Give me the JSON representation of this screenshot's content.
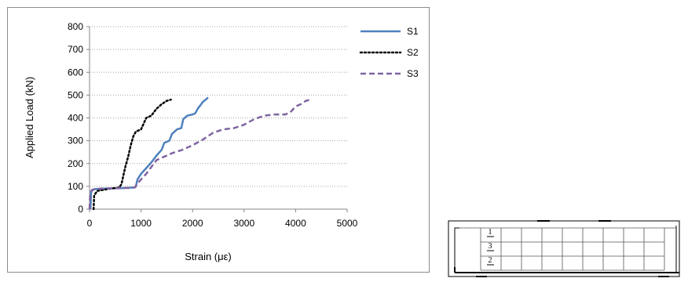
{
  "chart_data": {
    "type": "line",
    "title": "",
    "xlabel": "Strain (με)",
    "ylabel": "Applied Load (kN)",
    "xlim": [
      0,
      5000
    ],
    "ylim": [
      0,
      800
    ],
    "xticks": [
      0,
      1000,
      2000,
      3000,
      4000,
      5000
    ],
    "yticks": [
      0,
      100,
      200,
      300,
      400,
      500,
      600,
      700,
      800
    ],
    "grid": "horizontal dotted",
    "legend": "top-right",
    "series": [
      {
        "name": "S1",
        "color": "#4F81BD",
        "style": "solid",
        "points": [
          [
            0,
            0
          ],
          [
            20,
            5
          ],
          [
            30,
            80
          ],
          [
            100,
            88
          ],
          [
            300,
            90
          ],
          [
            600,
            92
          ],
          [
            880,
            95
          ],
          [
            900,
            100
          ],
          [
            930,
            130
          ],
          [
            1000,
            155
          ],
          [
            1100,
            180
          ],
          [
            1200,
            205
          ],
          [
            1300,
            235
          ],
          [
            1400,
            260
          ],
          [
            1450,
            290
          ],
          [
            1550,
            300
          ],
          [
            1600,
            330
          ],
          [
            1700,
            350
          ],
          [
            1780,
            355
          ],
          [
            1820,
            395
          ],
          [
            1900,
            410
          ],
          [
            2000,
            415
          ],
          [
            2050,
            420
          ],
          [
            2100,
            440
          ],
          [
            2200,
            470
          ],
          [
            2280,
            485
          ],
          [
            2300,
            490
          ]
        ]
      },
      {
        "name": "S2",
        "color": "#000000",
        "style": "dotted",
        "points": [
          [
            80,
            0
          ],
          [
            90,
            60
          ],
          [
            150,
            80
          ],
          [
            400,
            90
          ],
          [
            580,
            95
          ],
          [
            620,
            110
          ],
          [
            650,
            140
          ],
          [
            700,
            190
          ],
          [
            750,
            230
          ],
          [
            800,
            280
          ],
          [
            850,
            320
          ],
          [
            900,
            340
          ],
          [
            1000,
            350
          ],
          [
            1050,
            375
          ],
          [
            1100,
            400
          ],
          [
            1200,
            410
          ],
          [
            1300,
            440
          ],
          [
            1400,
            460
          ],
          [
            1500,
            475
          ],
          [
            1580,
            480
          ]
        ]
      },
      {
        "name": "S3",
        "color": "#8064A2",
        "style": "dashed",
        "points": [
          [
            0,
            0
          ],
          [
            10,
            60
          ],
          [
            50,
            85
          ],
          [
            200,
            90
          ],
          [
            500,
            92
          ],
          [
            800,
            93
          ],
          [
            880,
            95
          ],
          [
            920,
            110
          ],
          [
            1000,
            130
          ],
          [
            1100,
            155
          ],
          [
            1200,
            185
          ],
          [
            1300,
            215
          ],
          [
            1400,
            225
          ],
          [
            1600,
            245
          ],
          [
            1800,
            260
          ],
          [
            2000,
            280
          ],
          [
            2200,
            305
          ],
          [
            2300,
            320
          ],
          [
            2400,
            335
          ],
          [
            2600,
            350
          ],
          [
            2800,
            355
          ],
          [
            3000,
            370
          ],
          [
            3200,
            395
          ],
          [
            3400,
            410
          ],
          [
            3600,
            415
          ],
          [
            3800,
            415
          ],
          [
            3900,
            425
          ],
          [
            4000,
            450
          ],
          [
            4100,
            460
          ],
          [
            4200,
            475
          ],
          [
            4300,
            480
          ]
        ]
      }
    ]
  },
  "diagram": {
    "labels": [
      "1",
      "3",
      "2"
    ]
  }
}
